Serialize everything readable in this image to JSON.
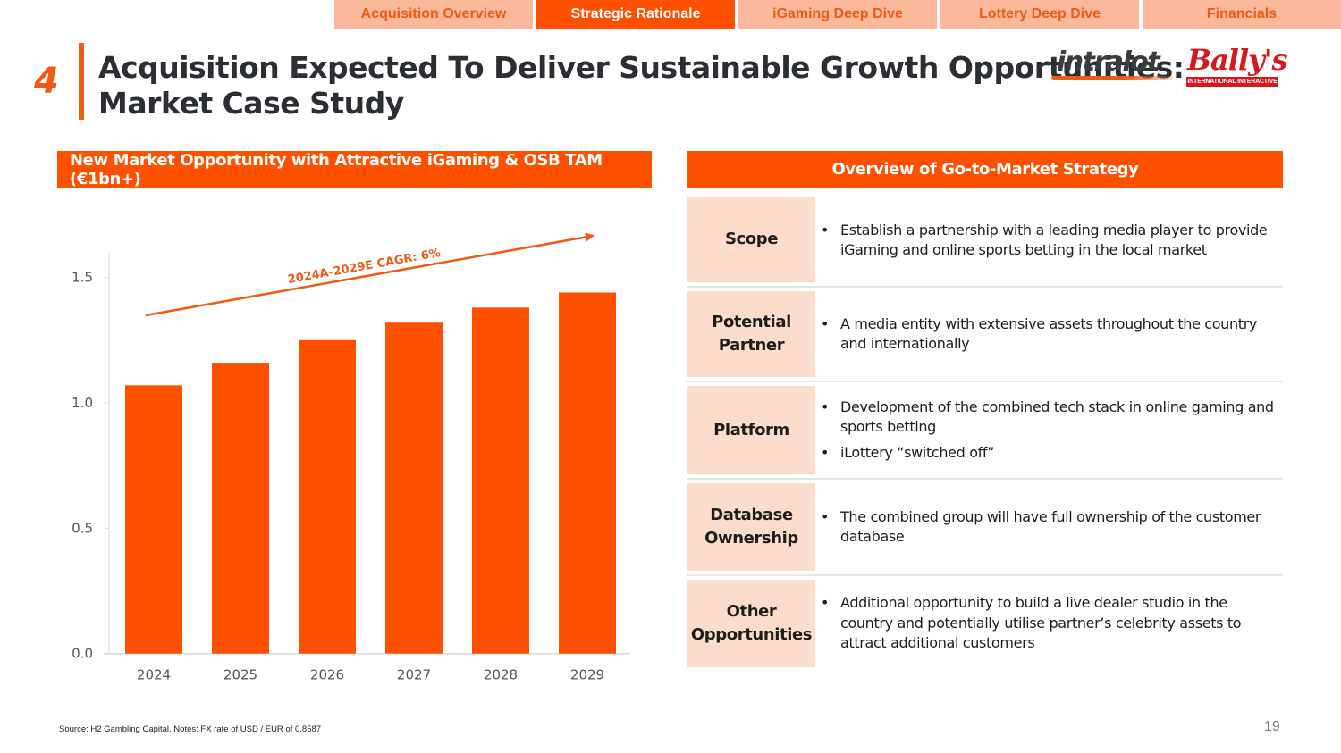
{
  "nav": {
    "tabs": [
      {
        "label": "Acquisition Overview",
        "active": false
      },
      {
        "label": "Strategic Rationale",
        "active": true
      },
      {
        "label": "iGaming Deep Dive",
        "active": false
      },
      {
        "label": "Lottery Deep Dive",
        "active": false
      },
      {
        "label": "Financials",
        "active": false
      }
    ]
  },
  "header": {
    "section_number": "4",
    "title_line1": "Acquisition Expected To Deliver Sustainable Growth Opportunities:",
    "title_line2": "Market Case Study"
  },
  "logos": {
    "intralot": "intralot",
    "ballys": "Bally's",
    "ballys_tagline": "INTERNATIONAL INTERACTIVE"
  },
  "colors": {
    "accent": "#ff5000",
    "accent_dark": "#f05a12",
    "tab_inactive_bg": "#fbb89a",
    "row_label_bg": "#fcdccb"
  },
  "left_panel": {
    "header": "New Market Opportunity with Attractive iGaming & OSB TAM (€1bn+)"
  },
  "chart_data": {
    "type": "bar",
    "title": "New Market Opportunity with Attractive iGaming & OSB TAM (€1bn+)",
    "xlabel": "",
    "ylabel": "",
    "categories": [
      "2024",
      "2025",
      "2026",
      "2027",
      "2028",
      "2029"
    ],
    "values": [
      1.07,
      1.16,
      1.25,
      1.32,
      1.38,
      1.44
    ],
    "ylim": [
      0,
      1.6
    ],
    "yticks": [
      0.0,
      0.5,
      1.0,
      1.5
    ],
    "ytick_labels": [
      "0.0",
      "0.5",
      "1.0",
      "1.5"
    ],
    "grid": false,
    "bar_color": "#ff5000",
    "annotation": {
      "text": "2024A-2029E CAGR: 6%",
      "type": "arrow",
      "from_category": "2024",
      "to_category": "2029"
    }
  },
  "right_panel": {
    "header": "Overview of Go-to-Market Strategy",
    "rows": [
      {
        "label": "Scope",
        "bullets": [
          "Establish a partnership with a leading media player to provide iGaming and online sports betting in the local market"
        ]
      },
      {
        "label": "Potential Partner",
        "bullets": [
          "A media entity with extensive assets throughout the country and internationally"
        ]
      },
      {
        "label": "Platform",
        "bullets": [
          "Development of the combined tech stack in online gaming and sports betting",
          "iLottery “switched off”"
        ]
      },
      {
        "label": "Database Ownership",
        "bullets": [
          "The combined group will have full ownership of the customer database"
        ]
      },
      {
        "label": "Other Opportunities",
        "bullets": [
          "Additional opportunity to build a live dealer studio in the country and potentially utilise partner’s celebrity assets to attract additional customers"
        ]
      }
    ]
  },
  "footer": {
    "source": "Source: H2 Gambling Capital. Notes: FX rate of USD / EUR of 0.8587",
    "page_number": "19"
  }
}
